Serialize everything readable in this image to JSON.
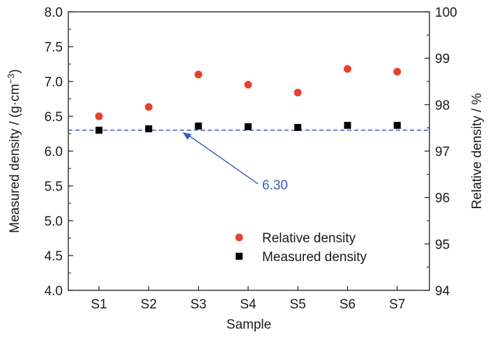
{
  "chart_data": {
    "type": "scatter",
    "categories": [
      "S1",
      "S2",
      "S3",
      "S4",
      "S5",
      "S6",
      "S7"
    ],
    "xlabel": "Sample",
    "ylabel": "Measured density / (g·cm",
    "ylabel_exponent": "−3",
    "ylabel_close": ")",
    "y2label": "Relative density / %",
    "ylim": [
      4.0,
      8.0
    ],
    "y2lim": [
      94,
      100
    ],
    "yticks": [
      "4.0",
      "4.5",
      "5.0",
      "5.5",
      "6.0",
      "6.5",
      "7.0",
      "7.5",
      "8.0"
    ],
    "y2ticks": [
      "94",
      "95",
      "96",
      "97",
      "98",
      "99",
      "100"
    ],
    "series": [
      {
        "name": "Relative density",
        "axis": "right",
        "marker": "circle",
        "color": "#e8412c",
        "values": [
          97.75,
          97.95,
          98.65,
          98.43,
          98.26,
          98.77,
          98.71
        ]
      },
      {
        "name": "Measured density",
        "axis": "left",
        "marker": "square",
        "color": "#000000",
        "values": [
          6.3,
          6.32,
          6.36,
          6.35,
          6.34,
          6.37,
          6.37
        ]
      }
    ],
    "reference_line": {
      "value": 6.3,
      "label": "6.30",
      "color": "#3a5bbf",
      "style": "dashed"
    },
    "legend_position": "lower-right",
    "grid": false
  }
}
